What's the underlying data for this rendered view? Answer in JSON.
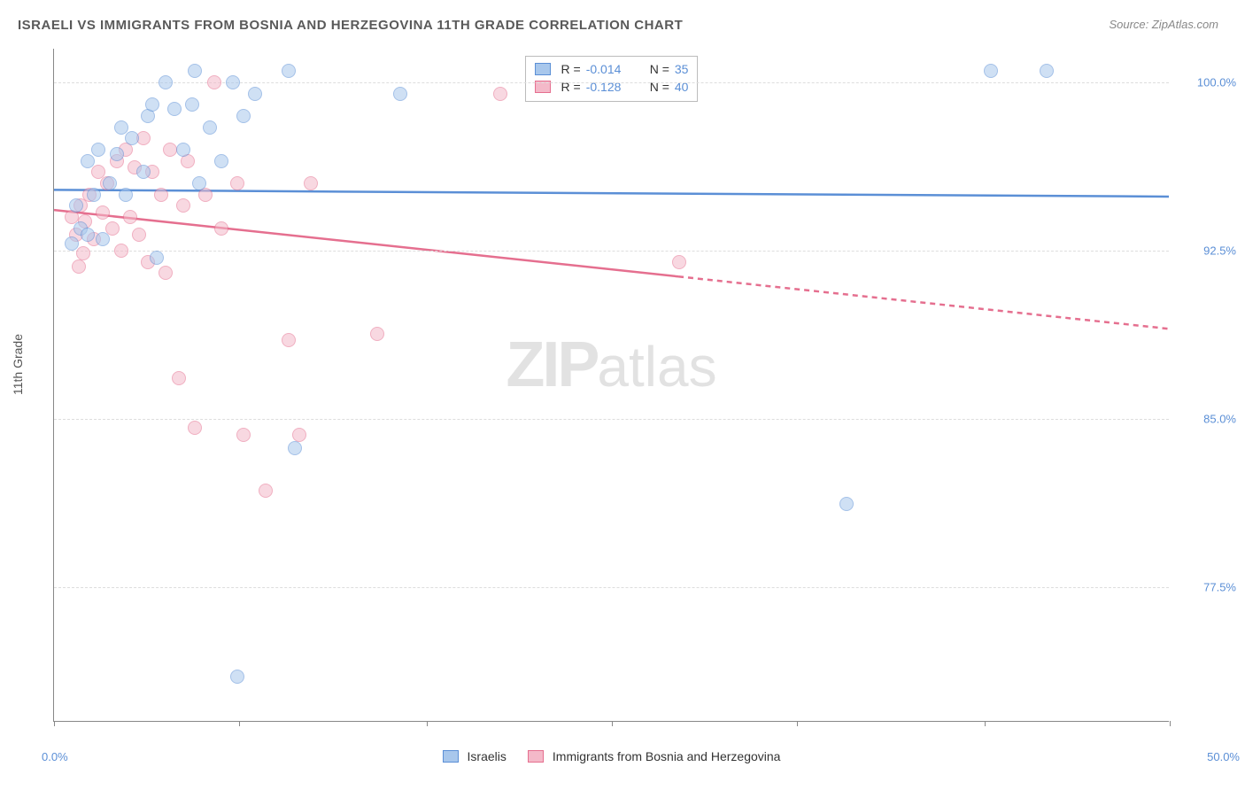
{
  "title": "ISRAELI VS IMMIGRANTS FROM BOSNIA AND HERZEGOVINA 11TH GRADE CORRELATION CHART",
  "source": "Source: ZipAtlas.com",
  "ylabel": "11th Grade",
  "watermark_1": "ZIP",
  "watermark_2": "atlas",
  "chart": {
    "type": "scatter",
    "background_color": "#ffffff",
    "grid_color": "#dddddd",
    "grid_dash": "4,3",
    "axis_color": "#888888",
    "marker_radius": 8,
    "marker_opacity": 0.55,
    "xlim": [
      0,
      50
    ],
    "ylim": [
      71.5,
      101.5
    ],
    "xticks_pos": [
      0,
      8.3,
      16.7,
      25,
      33.3,
      41.7,
      50
    ],
    "yticks": [
      77.5,
      85.0,
      92.5,
      100.0
    ],
    "ytick_labels": [
      "77.5%",
      "85.0%",
      "92.5%",
      "100.0%"
    ],
    "xaxis_min_label": "0.0%",
    "xaxis_max_label": "50.0%",
    "tick_label_color": "#5b8fd6",
    "tick_label_fontsize": 13
  },
  "series_a": {
    "name": "Israelis",
    "color_fill": "#a8c7ec",
    "color_stroke": "#5b8fd6",
    "r": "-0.014",
    "n": "35",
    "trend_y_at_xmin": 95.2,
    "trend_y_at_xmax": 94.9,
    "trend_solid_xmax": 50,
    "points": [
      [
        1.0,
        94.5
      ],
      [
        1.2,
        93.5
      ],
      [
        1.5,
        96.5
      ],
      [
        1.8,
        95.0
      ],
      [
        2.0,
        97.0
      ],
      [
        2.2,
        93.0
      ],
      [
        2.5,
        95.5
      ],
      [
        2.8,
        96.8
      ],
      [
        3.0,
        98.0
      ],
      [
        3.2,
        95.0
      ],
      [
        3.5,
        97.5
      ],
      [
        4.0,
        96.0
      ],
      [
        4.2,
        98.5
      ],
      [
        4.6,
        92.2
      ],
      [
        5.0,
        100.0
      ],
      [
        5.4,
        98.8
      ],
      [
        5.8,
        97.0
      ],
      [
        6.3,
        100.5
      ],
      [
        6.5,
        95.5
      ],
      [
        7.0,
        98.0
      ],
      [
        7.5,
        96.5
      ],
      [
        8.0,
        100.0
      ],
      [
        8.2,
        73.5
      ],
      [
        8.5,
        98.5
      ],
      [
        9.0,
        99.5
      ],
      [
        10.5,
        100.5
      ],
      [
        10.8,
        83.7
      ],
      [
        15.5,
        99.5
      ],
      [
        35.5,
        81.2
      ],
      [
        42.0,
        100.5
      ],
      [
        44.5,
        100.5
      ],
      [
        6.2,
        99.0
      ],
      [
        4.4,
        99.0
      ],
      [
        1.5,
        93.2
      ],
      [
        0.8,
        92.8
      ]
    ]
  },
  "series_b": {
    "name": "Immigrants from Bosnia and Herzegovina",
    "color_fill": "#f4b9c9",
    "color_stroke": "#e56f8f",
    "r": "-0.128",
    "n": "40",
    "trend_y_at_xmin": 94.3,
    "trend_y_at_xmax": 89.0,
    "trend_solid_xmax": 28,
    "points": [
      [
        0.8,
        94.0
      ],
      [
        1.0,
        93.2
      ],
      [
        1.2,
        94.5
      ],
      [
        1.4,
        93.8
      ],
      [
        1.6,
        95.0
      ],
      [
        1.8,
        93.0
      ],
      [
        2.0,
        96.0
      ],
      [
        2.2,
        94.2
      ],
      [
        2.4,
        95.5
      ],
      [
        2.6,
        93.5
      ],
      [
        2.8,
        96.5
      ],
      [
        3.0,
        92.5
      ],
      [
        3.2,
        97.0
      ],
      [
        3.4,
        94.0
      ],
      [
        3.6,
        96.2
      ],
      [
        3.8,
        93.2
      ],
      [
        4.0,
        97.5
      ],
      [
        4.2,
        92.0
      ],
      [
        4.4,
        96.0
      ],
      [
        4.8,
        95.0
      ],
      [
        5.0,
        91.5
      ],
      [
        5.2,
        97.0
      ],
      [
        5.6,
        86.8
      ],
      [
        5.8,
        94.5
      ],
      [
        6.0,
        96.5
      ],
      [
        6.3,
        84.6
      ],
      [
        6.8,
        95.0
      ],
      [
        7.2,
        100.0
      ],
      [
        7.5,
        93.5
      ],
      [
        8.2,
        95.5
      ],
      [
        8.5,
        84.3
      ],
      [
        9.5,
        81.8
      ],
      [
        10.5,
        88.5
      ],
      [
        11.0,
        84.3
      ],
      [
        11.5,
        95.5
      ],
      [
        14.5,
        88.8
      ],
      [
        20.0,
        99.5
      ],
      [
        28.0,
        92.0
      ],
      [
        1.1,
        91.8
      ],
      [
        1.3,
        92.4
      ]
    ]
  },
  "legend_top": {
    "r_label": "R =",
    "n_label": "N ="
  },
  "legend_bottom": {
    "a": "Israelis",
    "b": "Immigrants from Bosnia and Herzegovina"
  }
}
